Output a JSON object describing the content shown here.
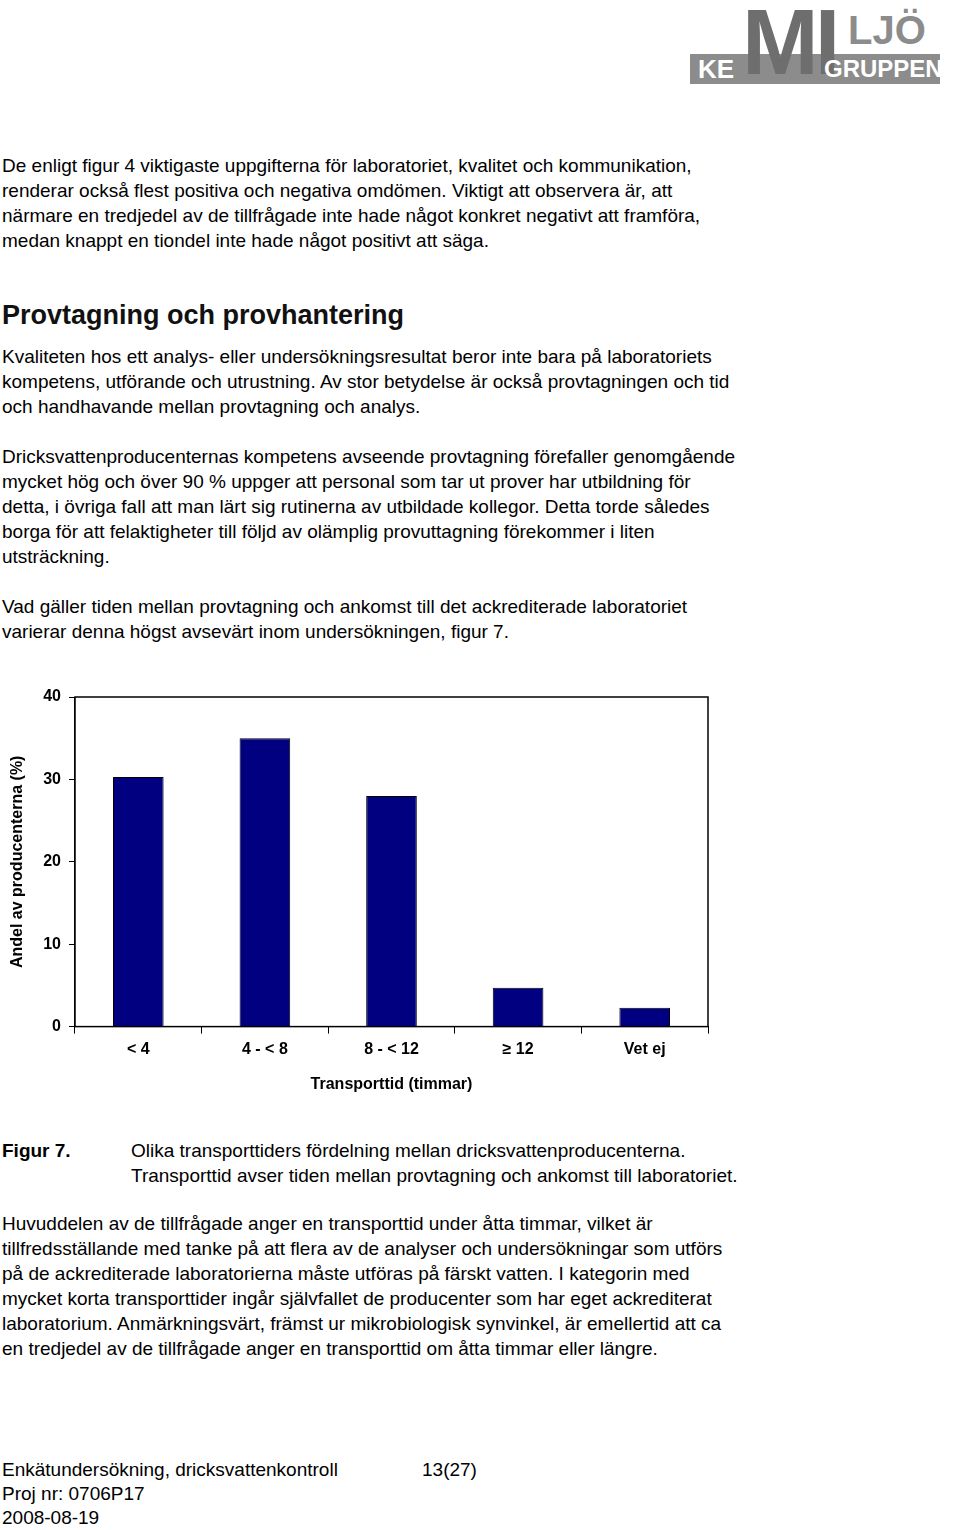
{
  "logo": {
    "ke": "KE",
    "mi": "MI",
    "ljo": "LJÖ",
    "gruppen": "GRUPPEN"
  },
  "intro": [
    "De enligt figur 4 viktigaste uppgifterna för laboratoriet, kvalitet och kommunikation,",
    "renderar också flest positiva och negativa omdömen. Viktigt att observera är, att",
    "närmare en tredjedel av de tillfrågade inte hade något konkret negativt att framföra,",
    "medan knappt en tiondel inte hade något positivt att säga."
  ],
  "heading": "Provtagning och provhantering",
  "section": [
    [
      "Kvaliteten hos ett analys- eller undersökningsresultat beror inte bara på laboratoriets",
      "kompetens, utförande och utrustning. Av stor betydelse är också provtagningen och tid",
      "och handhavande mellan provtagning och analys."
    ],
    [
      "Dricksvattenproducenternas kompetens avseende provtagning förefaller genomgående",
      "mycket hög och över 90 % uppger att personal som tar ut prover har utbildning för",
      "detta, i övriga fall att man lärt sig rutinerna av utbildade kollegor. Detta torde således",
      "borga för att felaktigheter till följd av olämplig provuttagning förekommer i liten",
      "utsträckning."
    ],
    [
      "Vad gäller tiden mellan provtagning och ankomst till det ackrediterade laboratoriet",
      "varierar denna högst avsevärt inom undersökningen, figur 7."
    ]
  ],
  "chart_data": {
    "type": "bar",
    "x_label": "Transporttid (timmar)",
    "y_label": "Andel av producenterna (%)",
    "categories": [
      "< 4",
      "4 - < 8",
      "8 - < 12",
      "≥ 12",
      "Vet ej"
    ],
    "values": [
      30.3,
      35.0,
      28.0,
      4.7,
      2.3
    ],
    "color": "#000080",
    "ylim": [
      0,
      40
    ],
    "yticks": [
      0,
      10,
      20,
      30,
      40
    ],
    "grid": false
  },
  "caption": {
    "label": "Figur 7.",
    "lines": [
      "Olika transporttiders fördelning mellan dricksvattenproducenterna.",
      "Transporttid avser tiden mellan provtagning och ankomst till laboratoriet."
    ]
  },
  "conclusion": [
    "Huvuddelen av de tillfrågade anger en transporttid under åtta timmar, vilket är",
    "tillfredsställande med tanke på att flera av de analyser och undersökningar som utförs",
    "på de ackrediterade laboratorierna måste utföras på färskt vatten. I kategorin med",
    "mycket korta transporttider ingår självfallet de producenter som har eget ackrediterat",
    "laboratorium. Anmärkningsvärt, främst ur mikrobiologisk synvinkel, är emellertid att ca",
    "en tredjedel av de tillfrågade anger en transporttid om åtta timmar eller längre."
  ],
  "footer": {
    "title": "Enkätundersökning, dricksvattenkontroll",
    "page": "13(27)",
    "project": "Proj nr: 0706P17",
    "date": "2008-08-19"
  }
}
